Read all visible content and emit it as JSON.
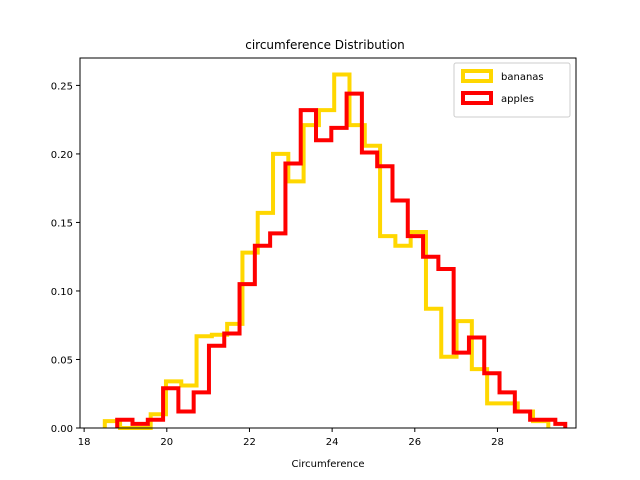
{
  "chart_data": {
    "type": "step-histogram",
    "title": "circumference Distribution",
    "xlabel": "Circumference",
    "ylabel": "",
    "xlim": [
      17.9,
      29.9
    ],
    "ylim": [
      0,
      0.27
    ],
    "xticks": [
      18,
      20,
      22,
      24,
      26,
      28
    ],
    "yticks": [
      0.0,
      0.05,
      0.1,
      0.15,
      0.2,
      0.25
    ],
    "xtick_labels": [
      "18",
      "20",
      "22",
      "24",
      "26",
      "28"
    ],
    "ytick_labels": [
      "0.00",
      "0.05",
      "0.10",
      "0.15",
      "0.20",
      "0.25"
    ],
    "legend_position": "top-right",
    "grid": false,
    "series": [
      {
        "name": "bananas",
        "color": "#FFD700",
        "edges": [
          18.5,
          18.87,
          19.24,
          19.61,
          19.98,
          20.35,
          20.72,
          21.09,
          21.46,
          21.83,
          22.2,
          22.57,
          22.94,
          23.31,
          23.68,
          24.05,
          24.42,
          24.79,
          25.16,
          25.53,
          25.9,
          26.27,
          26.64,
          27.01,
          27.38,
          27.75,
          28.12,
          28.49,
          28.86
        ],
        "values": [
          0.005,
          0.0,
          0.0,
          0.01,
          0.034,
          0.031,
          0.067,
          0.068,
          0.076,
          0.128,
          0.157,
          0.2,
          0.18,
          0.221,
          0.232,
          0.258,
          0.221,
          0.206,
          0.14,
          0.133,
          0.143,
          0.087,
          0.052,
          0.078,
          0.043,
          0.018,
          0.018,
          0.012,
          0.005
        ]
      },
      {
        "name": "apples",
        "color": "#FF0000",
        "edges": [
          18.8,
          19.17,
          19.54,
          19.91,
          20.28,
          20.65,
          21.02,
          21.39,
          21.76,
          22.13,
          22.5,
          22.87,
          23.24,
          23.61,
          23.98,
          24.35,
          24.72,
          25.09,
          25.46,
          25.83,
          26.2,
          26.57,
          26.94,
          27.31,
          27.68,
          28.05,
          28.42,
          28.79,
          29.16,
          29.4
        ],
        "values": [
          0.006,
          0.003,
          0.006,
          0.029,
          0.012,
          0.026,
          0.06,
          0.069,
          0.105,
          0.133,
          0.142,
          0.193,
          0.232,
          0.21,
          0.219,
          0.244,
          0.201,
          0.191,
          0.166,
          0.14,
          0.125,
          0.116,
          0.055,
          0.066,
          0.04,
          0.026,
          0.012,
          0.006,
          0.006,
          0.003
        ]
      }
    ]
  }
}
